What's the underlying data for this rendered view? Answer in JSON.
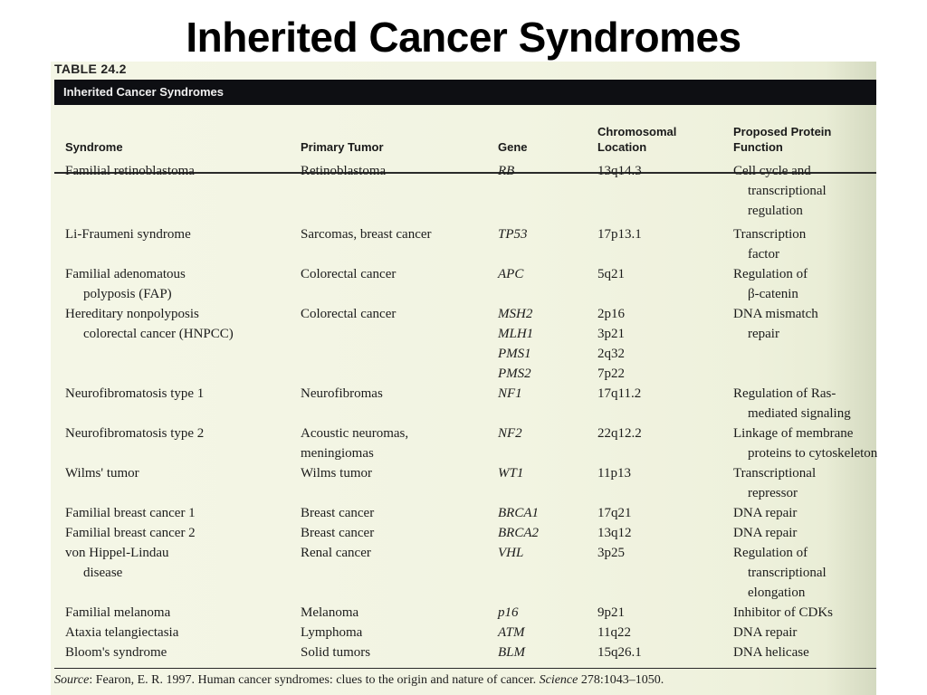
{
  "slide_title": "Inherited Cancer Syndromes",
  "table_label": "TABLE 24.2",
  "banner_title": "Inherited Cancer Syndromes",
  "headers": {
    "syndrome": "Syndrome",
    "primary_tumor": "Primary Tumor",
    "gene": "Gene",
    "location_1": "Chromosomal",
    "location_2": "Location",
    "function_1": "Proposed Protein",
    "function_2": "Function"
  },
  "rows": [
    {
      "syndrome": [
        "Familial retinoblastoma"
      ],
      "tumor": [
        "Retinoblastoma"
      ],
      "gene": [
        "RB"
      ],
      "location": [
        "13q14.3"
      ],
      "function": [
        "Cell cycle and",
        "transcriptional",
        "regulation"
      ]
    },
    {
      "syndrome": [
        "Li-Fraumeni syndrome"
      ],
      "tumor": [
        "Sarcomas, breast cancer"
      ],
      "gene": [
        "TP53"
      ],
      "location": [
        "17p13.1"
      ],
      "function": [
        "Transcription",
        "factor"
      ]
    },
    {
      "syndrome": [
        "Familial adenomatous",
        "polyposis (FAP)"
      ],
      "tumor": [
        "Colorectal cancer"
      ],
      "gene": [
        "APC"
      ],
      "location": [
        "5q21"
      ],
      "function": [
        "Regulation of",
        "β-catenin"
      ]
    },
    {
      "syndrome": [
        "Hereditary nonpolyposis",
        "colorectal cancer (HNPCC)"
      ],
      "tumor": [
        "Colorectal cancer"
      ],
      "gene": [
        "MSH2",
        "MLH1",
        "PMS1",
        "PMS2"
      ],
      "location": [
        "2p16",
        "3p21",
        "2q32",
        "7p22"
      ],
      "function": [
        "DNA mismatch",
        "repair"
      ]
    },
    {
      "syndrome": [
        "Neurofibromatosis type 1"
      ],
      "tumor": [
        "Neurofibromas"
      ],
      "gene": [
        "NF1"
      ],
      "location": [
        "17q11.2"
      ],
      "function": [
        "Regulation of Ras-",
        "mediated signaling"
      ]
    },
    {
      "syndrome": [
        "Neurofibromatosis type 2"
      ],
      "tumor": [
        "Acoustic neuromas,",
        "meningiomas"
      ],
      "gene": [
        "NF2"
      ],
      "location": [
        "22q12.2"
      ],
      "function": [
        "Linkage of membrane",
        "proteins to cytoskeleton"
      ]
    },
    {
      "syndrome": [
        "Wilms' tumor"
      ],
      "tumor": [
        "Wilms tumor"
      ],
      "gene": [
        "WT1"
      ],
      "location": [
        "11p13"
      ],
      "function": [
        "Transcriptional",
        "repressor"
      ]
    },
    {
      "syndrome": [
        "Familial breast cancer 1"
      ],
      "tumor": [
        "Breast cancer"
      ],
      "gene": [
        "BRCA1"
      ],
      "location": [
        "17q21"
      ],
      "function": [
        "DNA repair"
      ]
    },
    {
      "syndrome": [
        "Familial breast cancer 2"
      ],
      "tumor": [
        "Breast cancer"
      ],
      "gene": [
        "BRCA2"
      ],
      "location": [
        "13q12"
      ],
      "function": [
        "DNA repair"
      ]
    },
    {
      "syndrome": [
        "von Hippel-Lindau",
        "disease"
      ],
      "tumor": [
        "Renal cancer"
      ],
      "gene": [
        "VHL"
      ],
      "location": [
        "3p25"
      ],
      "function": [
        "Regulation of",
        "transcriptional",
        "elongation"
      ]
    },
    {
      "syndrome": [
        "Familial melanoma"
      ],
      "tumor": [
        "Melanoma"
      ],
      "gene": [
        "p16"
      ],
      "location": [
        "9p21"
      ],
      "function": [
        "Inhibitor of CDKs"
      ]
    },
    {
      "syndrome": [
        "Ataxia telangiectasia"
      ],
      "tumor": [
        "Lymphoma"
      ],
      "gene": [
        "ATM"
      ],
      "location": [
        "11q22"
      ],
      "function": [
        "DNA repair"
      ]
    },
    {
      "syndrome": [
        "Bloom's syndrome"
      ],
      "tumor": [
        "Solid tumors"
      ],
      "gene": [
        "BLM"
      ],
      "location": [
        "15q26.1"
      ],
      "function": [
        "DNA helicase"
      ]
    }
  ],
  "source": {
    "label": "Source",
    "text": ": Fearon, E. R. 1997. Human cancer syndromes: clues to the origin and nature of cancer. ",
    "journal": "Science",
    "citation": " 278:1043–1050."
  }
}
